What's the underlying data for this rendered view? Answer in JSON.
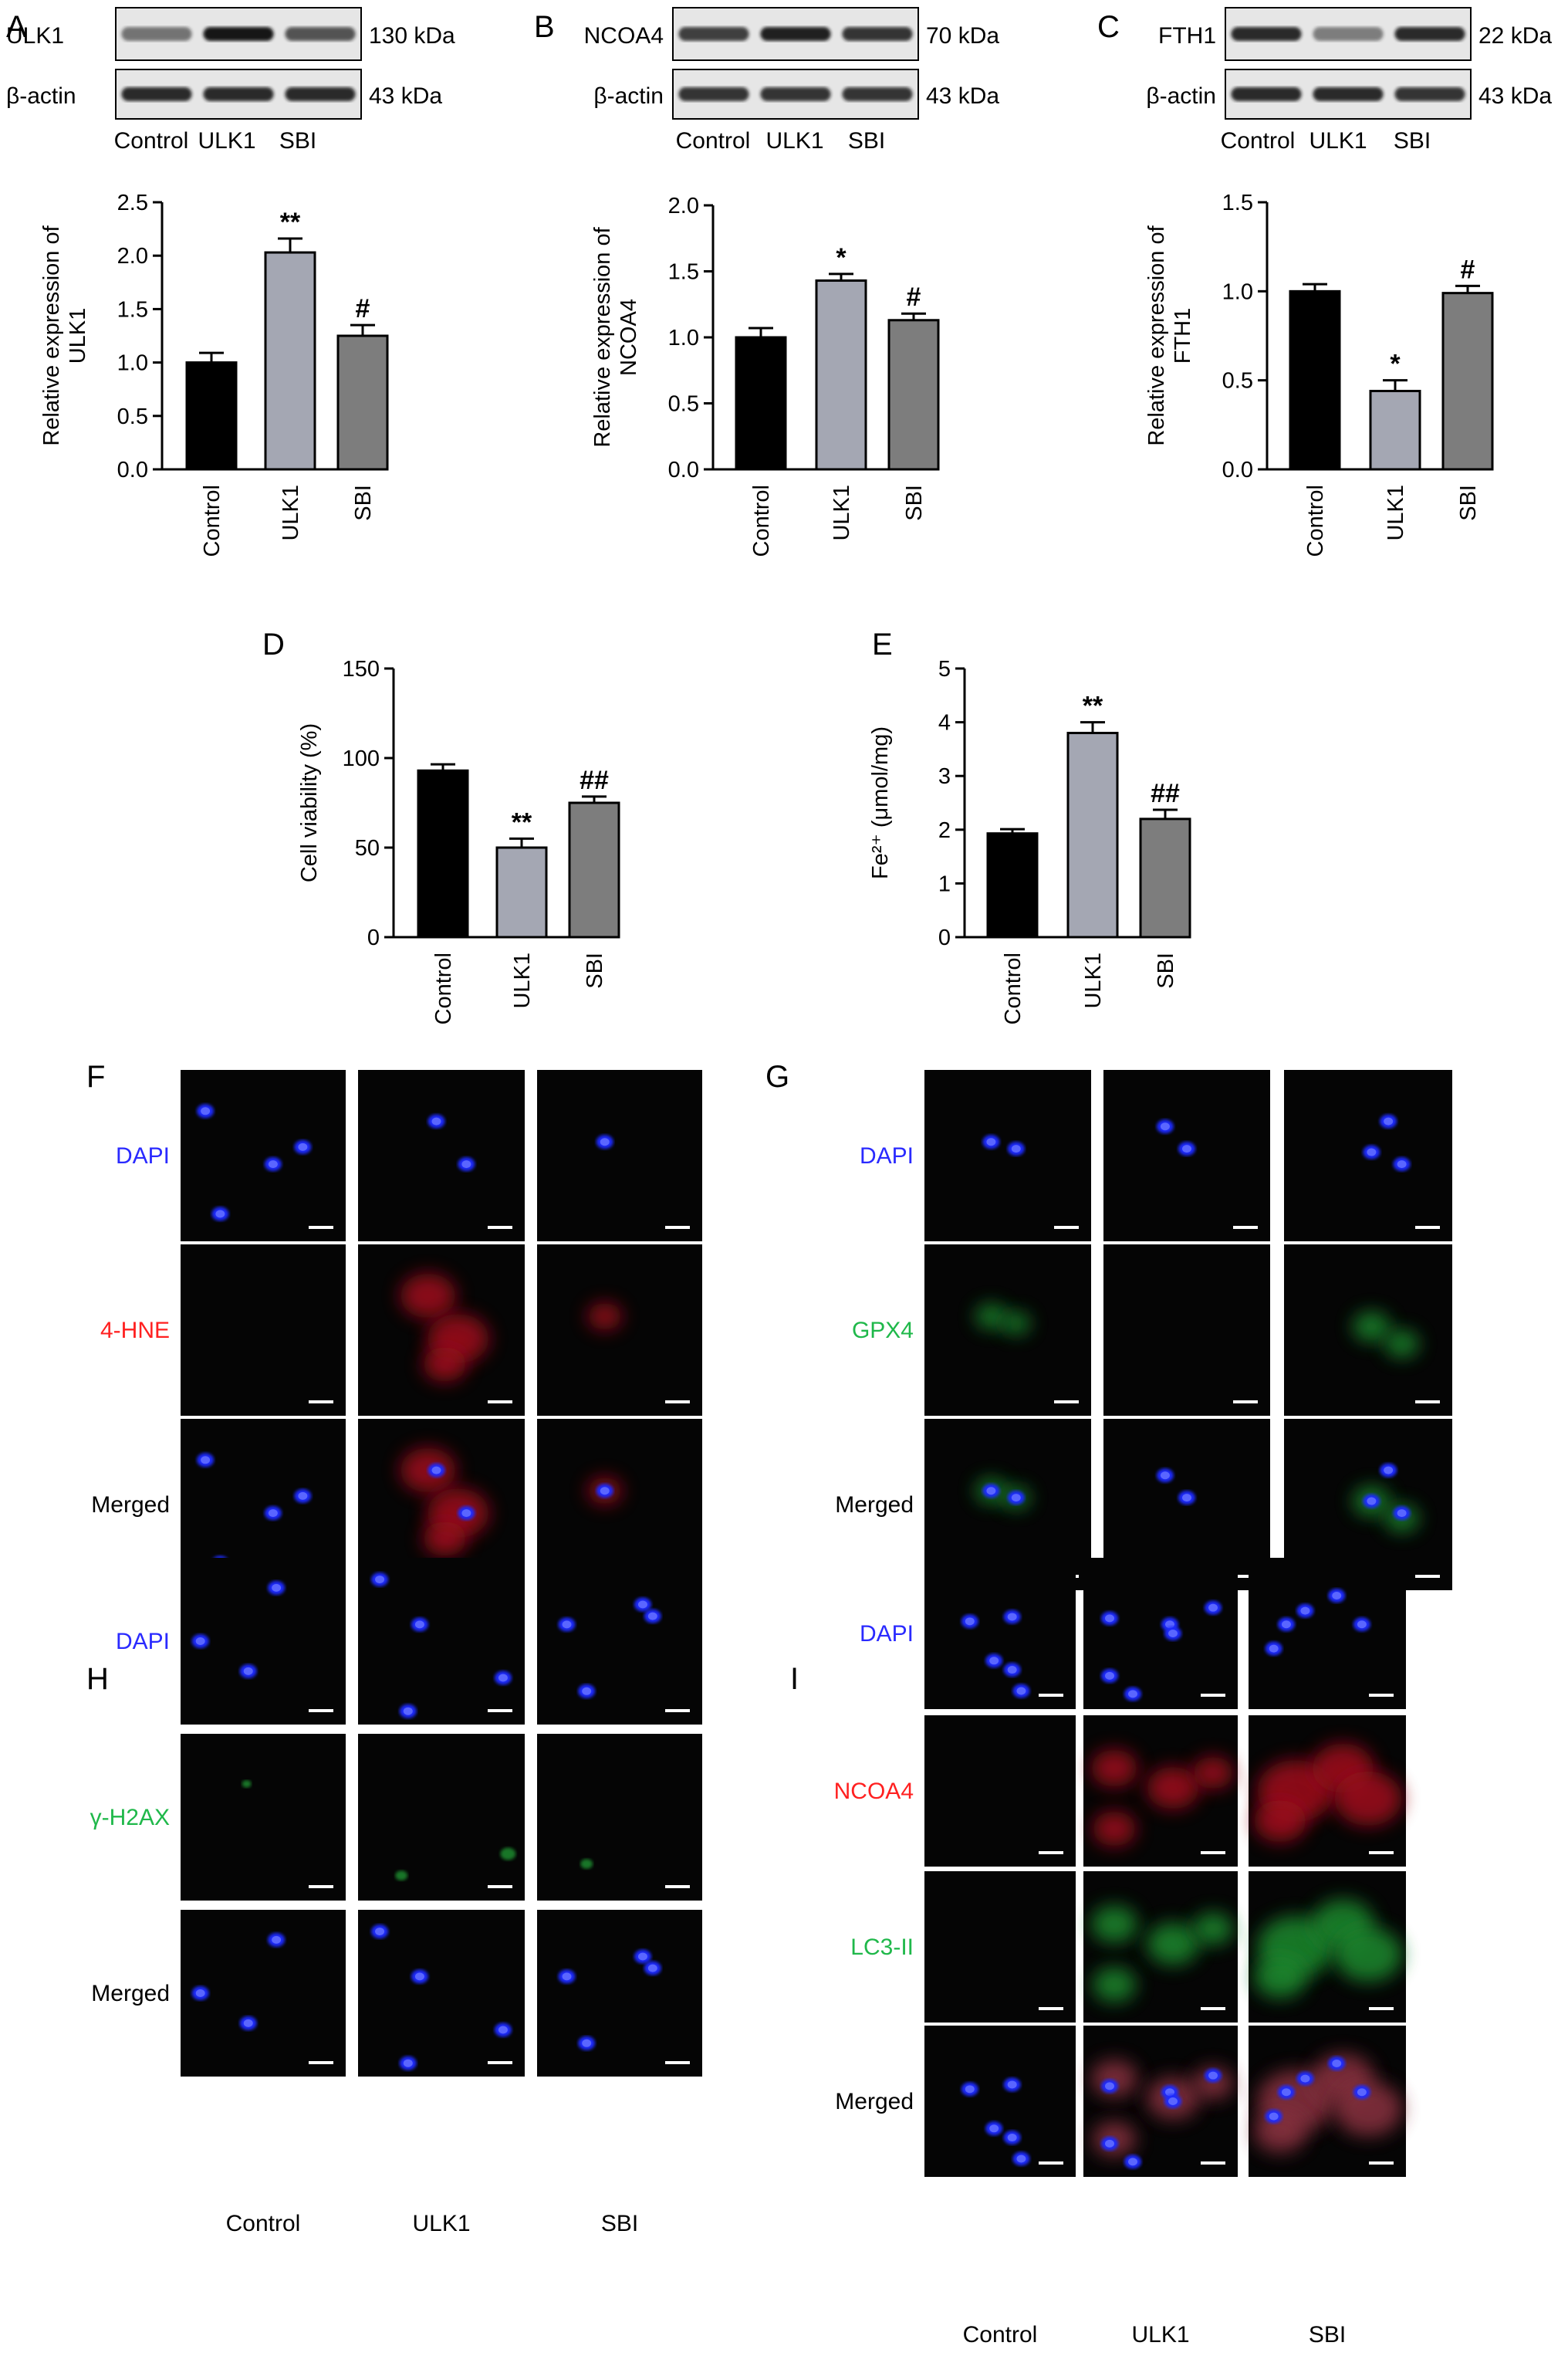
{
  "figure": {
    "panel_letters": [
      "A",
      "B",
      "C",
      "D",
      "E",
      "F",
      "G",
      "H",
      "I"
    ],
    "groups": [
      "Control",
      "ULK1",
      "SBI"
    ],
    "blots": [
      {
        "panel": "A",
        "protein": "ULK1",
        "protein_kda": "130 kDa",
        "loading": "β-actin",
        "loading_kda": "43 kDa",
        "lanes": [
          "Control",
          "ULK1",
          "SBI"
        ],
        "band_levels": [
          0.55,
          1.0,
          0.7
        ],
        "loading_levels": [
          0.9,
          0.9,
          0.9
        ]
      },
      {
        "panel": "B",
        "protein": "NCOA4",
        "protein_kda": "70 kDa",
        "loading": "β-actin",
        "loading_kda": "43 kDa",
        "lanes": [
          "Control",
          "ULK1",
          "SBI"
        ],
        "band_levels": [
          0.8,
          0.95,
          0.85
        ],
        "loading_levels": [
          0.85,
          0.85,
          0.85
        ]
      },
      {
        "panel": "C",
        "protein": "FTH1",
        "protein_kda": "22 kDa",
        "loading": "β-actin",
        "loading_kda": "43 kDa",
        "lanes": [
          "Control",
          "ULK1",
          "SBI"
        ],
        "band_levels": [
          0.9,
          0.5,
          0.9
        ],
        "loading_levels": [
          0.9,
          0.9,
          0.85
        ]
      }
    ],
    "microscopy": [
      {
        "panel": "F",
        "rows": [
          {
            "label": "DAPI",
            "color": "#2a2aff"
          },
          {
            "label": "4-HNE",
            "color": "#ff2020"
          },
          {
            "label": "Merged",
            "color": "#000000"
          }
        ],
        "columns": [
          "Control",
          "ULK1",
          "SBI"
        ]
      },
      {
        "panel": "G",
        "rows": [
          {
            "label": "DAPI",
            "color": "#2a2aff"
          },
          {
            "label": "GPX4",
            "color": "#1fb84a"
          },
          {
            "label": "Merged",
            "color": "#000000"
          }
        ],
        "columns": [
          "Control",
          "ULK1",
          "SBI"
        ]
      },
      {
        "panel": "H",
        "rows": [
          {
            "label": "DAPI",
            "color": "#2a2aff"
          },
          {
            "label": "γ-H2AX",
            "color": "#1fb84a"
          },
          {
            "label": "Merged",
            "color": "#000000"
          }
        ],
        "columns": [
          "Control",
          "ULK1",
          "SBI"
        ]
      },
      {
        "panel": "I",
        "rows": [
          {
            "label": "DAPI",
            "color": "#2a2aff"
          },
          {
            "label": "NCOA4",
            "color": "#ff2020"
          },
          {
            "label": "LC3-II",
            "color": "#1fb84a"
          },
          {
            "label": "Merged",
            "color": "#000000"
          }
        ],
        "columns": [
          "Control",
          "ULK1",
          "SBI"
        ]
      }
    ],
    "colors": {
      "control": "#000000",
      "ulk1": "#a4a7b3",
      "sbi": "#7d7d7d"
    }
  },
  "chart_data": [
    {
      "panel": "A",
      "type": "bar",
      "categories": [
        "Control",
        "ULK1",
        "SBI"
      ],
      "values": [
        1.0,
        2.03,
        1.25
      ],
      "errors": [
        0.09,
        0.13,
        0.1
      ],
      "significance": [
        "",
        "**",
        "#"
      ],
      "ylabel_lines": [
        "Relative expression of",
        "ULK1"
      ],
      "ylim": [
        0,
        2.5
      ],
      "yticks": [
        "0.0",
        "0.5",
        "1.0",
        "1.5",
        "2.0",
        "2.5"
      ]
    },
    {
      "panel": "B",
      "type": "bar",
      "categories": [
        "Control",
        "ULK1",
        "SBI"
      ],
      "values": [
        1.0,
        1.43,
        1.13
      ],
      "errors": [
        0.07,
        0.05,
        0.05
      ],
      "significance": [
        "",
        "*",
        "#"
      ],
      "ylabel_lines": [
        "Relative expression of",
        "NCOA4"
      ],
      "ylim": [
        0,
        2.0
      ],
      "yticks": [
        "0.0",
        "0.5",
        "1.0",
        "1.5",
        "2.0"
      ]
    },
    {
      "panel": "C",
      "type": "bar",
      "categories": [
        "Control",
        "ULK1",
        "SBI"
      ],
      "values": [
        1.0,
        0.44,
        0.99
      ],
      "errors": [
        0.04,
        0.06,
        0.04
      ],
      "significance": [
        "",
        "*",
        "#"
      ],
      "ylabel_lines": [
        "Relative expression of",
        "FTH1"
      ],
      "ylim": [
        0,
        1.5
      ],
      "yticks": [
        "0.0",
        "0.5",
        "1.0",
        "1.5"
      ]
    },
    {
      "panel": "D",
      "type": "bar",
      "categories": [
        "Control",
        "ULK1",
        "SBI"
      ],
      "values": [
        93,
        50,
        75
      ],
      "errors": [
        3.5,
        5,
        3.5
      ],
      "significance": [
        "",
        "**",
        "##"
      ],
      "ylabel_lines": [
        "Cell viability (%)"
      ],
      "ylim": [
        0,
        150
      ],
      "yticks": [
        "0",
        "50",
        "100",
        "150"
      ]
    },
    {
      "panel": "E",
      "type": "bar",
      "categories": [
        "Control",
        "ULK1",
        "SBI"
      ],
      "values": [
        1.93,
        3.8,
        2.2
      ],
      "errors": [
        0.08,
        0.2,
        0.17
      ],
      "significance": [
        "",
        "**",
        "##"
      ],
      "ylabel_lines": [
        "Fe²⁺ (μmol/mg)"
      ],
      "ylim": [
        0,
        5
      ],
      "yticks": [
        "0",
        "1",
        "2",
        "3",
        "4",
        "5"
      ]
    }
  ]
}
